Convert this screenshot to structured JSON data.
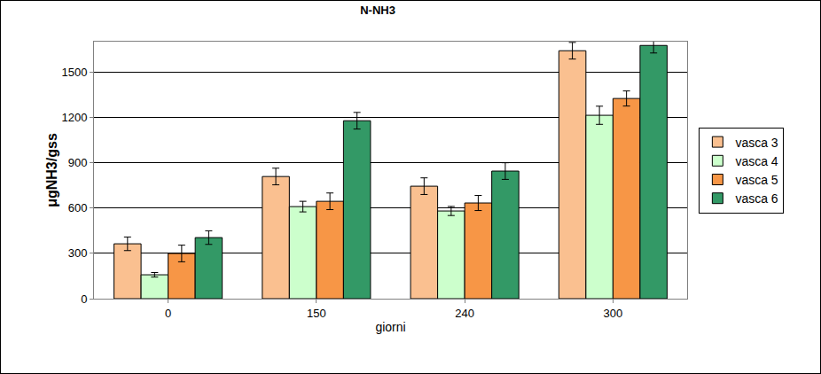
{
  "chart_data": {
    "type": "bar",
    "title": "N-NH3",
    "x_label": "giorni",
    "y_label": "μgNH3/gss",
    "categories": [
      "0",
      "150",
      "240",
      "300"
    ],
    "series": [
      {
        "name": "vasca 3",
        "color": "#FAC090",
        "values": [
          363,
          808,
          744,
          1640
        ],
        "errors": [
          45,
          55,
          55,
          55
        ]
      },
      {
        "name": "vasca 4",
        "color": "#CCFFCC",
        "values": [
          158,
          609,
          580,
          1213
        ],
        "errors": [
          15,
          35,
          30,
          60
        ]
      },
      {
        "name": "vasca 5",
        "color": "#F79646",
        "values": [
          299,
          644,
          633,
          1324
        ],
        "errors": [
          55,
          55,
          50,
          50
        ]
      },
      {
        "name": "vasca 6",
        "color": "#339966",
        "values": [
          404,
          1177,
          844,
          1675
        ],
        "errors": [
          45,
          55,
          55,
          50
        ]
      }
    ],
    "ylim": [
      0,
      1700
    ],
    "yticks": [
      0,
      300,
      600,
      900,
      1200,
      1500
    ],
    "grid": true,
    "legend": "right"
  }
}
